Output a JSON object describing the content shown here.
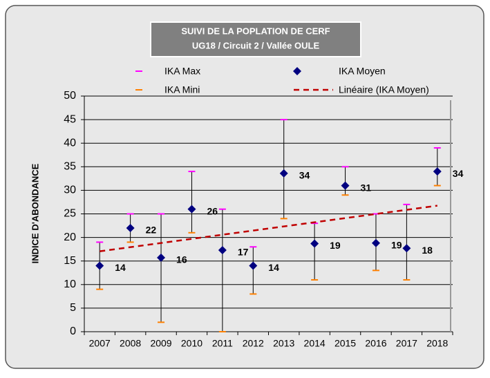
{
  "chart_data": {
    "type": "errorbar",
    "title": [
      "SUIVI DE LA POPLATION DE CERF",
      "UG18 / Circuit 2 / Vallée OULE"
    ],
    "y_label": "INDICE D'ABONDANCE",
    "categories": [
      "2007",
      "2008",
      "2009",
      "2010",
      "2011",
      "2012",
      "2013",
      "2014",
      "2015",
      "2016",
      "2017",
      "2018"
    ],
    "series": [
      {
        "name": "IKA Moyen",
        "color": "#000080",
        "values": [
          14,
          22,
          15.7,
          26,
          17.3,
          14,
          33.6,
          18.7,
          31,
          18.8,
          17.7,
          34
        ],
        "value_labels": [
          "14",
          "22",
          "16",
          "26",
          "17",
          "14",
          "34",
          "19",
          "31",
          "19",
          "18",
          "34"
        ]
      },
      {
        "name": "IKA Max",
        "color": "#ff00ff",
        "values": [
          19,
          25,
          25,
          34,
          26,
          18,
          45,
          23,
          35,
          25,
          27,
          39
        ]
      },
      {
        "name": "IKA Mini",
        "color": "#ff8000",
        "values": [
          9,
          19,
          2,
          21,
          0,
          8,
          24,
          11,
          29,
          13,
          11,
          31
        ]
      }
    ],
    "trendline": {
      "name": "Linéaire (IKA Moyen)",
      "color": "#c00000"
    },
    "ylim": [
      0,
      50
    ],
    "yticks": [
      0,
      5,
      10,
      15,
      20,
      25,
      30,
      35,
      40,
      45,
      50
    ],
    "grid": true
  }
}
